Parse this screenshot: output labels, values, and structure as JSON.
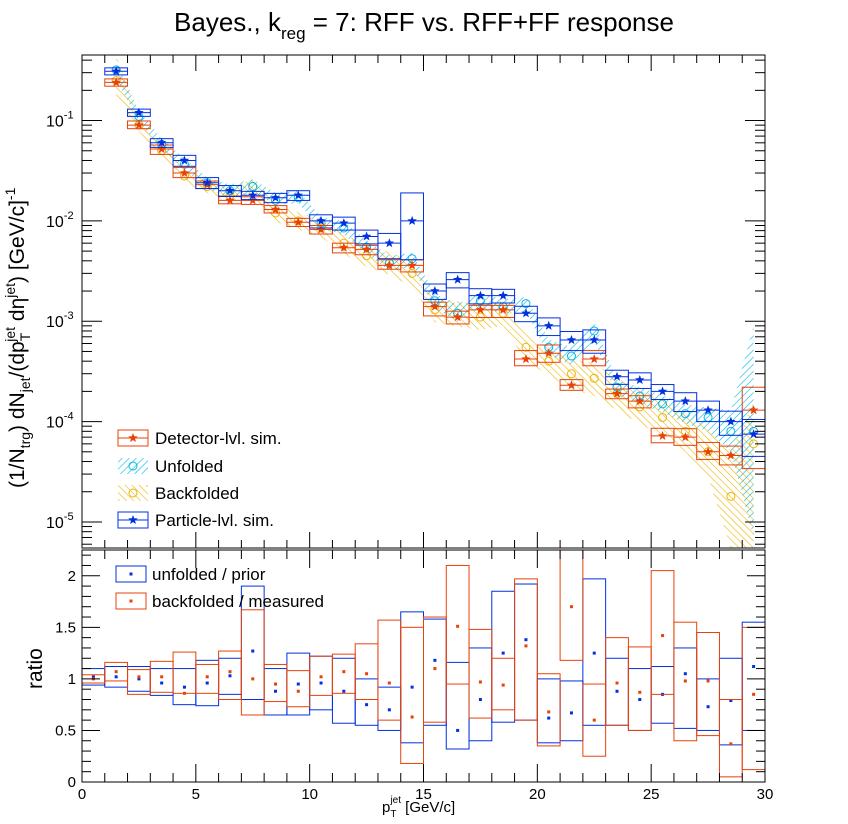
{
  "chart_data": [
    {
      "type": "scatter",
      "panel": "top",
      "title": {
        "main": "Bayes., k",
        "sub": "reg",
        "rest": " = 7: RFF vs. RFF+FF response"
      },
      "ylabel": {
        "p1": "(1/N",
        "s1": "trg",
        "p2": ") dN",
        "s2": "jet",
        "p3": "/(dp",
        "s3": "T",
        "u3": "jet",
        "p4": " d",
        "p5": "η",
        "u5": "jet",
        "p6": ") [GeV/c]",
        "u6": "-1"
      },
      "y_scale": "log",
      "xlim": [
        0,
        30
      ],
      "ylim": [
        5.5e-06,
        0.45
      ],
      "y_tick_labels": [
        {
          "b": "10",
          "e": "-5",
          "v": 1e-05
        },
        {
          "b": "10",
          "e": "-4",
          "v": 0.0001
        },
        {
          "b": "10",
          "e": "-3",
          "v": 0.001
        },
        {
          "b": "10",
          "e": "-2",
          "v": 0.01
        },
        {
          "b": "10",
          "e": "-1",
          "v": 0.1
        }
      ],
      "x": [
        1.5,
        2.5,
        3.5,
        4.5,
        5.5,
        6.5,
        7.5,
        8.5,
        9.5,
        10.5,
        11.5,
        12.5,
        13.5,
        14.5,
        15.5,
        16.5,
        17.5,
        18.5,
        19.5,
        20.5,
        21.5,
        22.5,
        23.5,
        24.5,
        25.5,
        26.5,
        27.5,
        28.5,
        29.5
      ],
      "series": [
        {
          "name": "Detector-lvl. sim.",
          "color": "#e8410a",
          "marker": "star",
          "values": [
            0.24,
            0.09,
            0.052,
            0.03,
            0.023,
            0.016,
            0.016,
            0.013,
            0.0097,
            0.0082,
            0.0054,
            0.0052,
            0.0036,
            0.0036,
            0.0014,
            0.0011,
            0.0013,
            0.0013,
            0.00042,
            0.00048,
            0.00023,
            0.00042,
            0.00019,
            0.00016,
            7.2e-05,
            7e-05,
            5e-05,
            4.6e-05,
            0.00013
          ],
          "box_low": [
            0.22,
            0.083,
            0.046,
            0.027,
            0.021,
            0.0148,
            0.0146,
            0.012,
            0.0088,
            0.0074,
            0.0048,
            0.0046,
            0.0033,
            0.0031,
            0.00113,
            0.00094,
            0.00109,
            0.00109,
            0.00036,
            0.00039,
            0.000205,
            0.00036,
            0.000169,
            0.000137,
            6.15e-05,
            5.8e-05,
            4.2e-05,
            3.7e-05,
            3.4e-05
          ],
          "box_high": [
            0.26,
            0.099,
            0.057,
            0.034,
            0.025,
            0.0177,
            0.0174,
            0.0142,
            0.0106,
            0.009,
            0.006,
            0.0057,
            0.0041,
            0.0041,
            0.00155,
            0.00126,
            0.00144,
            0.00144,
            0.00051,
            0.00058,
            0.000262,
            0.00051,
            0.000211,
            0.000181,
            8.58e-05,
            8.5e-05,
            6.2e-05,
            5.7e-05,
            0.00022
          ]
        },
        {
          "name": "Unfolded",
          "color": "#00b8e8",
          "marker": "circle-open",
          "values": [
            0.32,
            0.11,
            0.058,
            0.037,
            0.024,
            0.02,
            0.022,
            0.016,
            0.017,
            0.0095,
            0.0085,
            0.0055,
            0.0038,
            0.0042,
            0.0016,
            0.0012,
            0.0016,
            0.0014,
            0.0015,
            0.00055,
            0.00045,
            0.0008,
            0.00022,
            0.00018,
            0.00015,
            0.00012,
            0.00011,
            8e-05,
            8e-05
          ],
          "band_low": [
            0.26,
            0.096,
            0.052,
            0.033,
            0.021,
            0.017,
            0.019,
            0.0145,
            0.015,
            0.0084,
            0.0073,
            0.0047,
            0.0032,
            0.0035,
            0.00135,
            0.001,
            0.0014,
            0.00118,
            0.00125,
            0.00046,
            0.00037,
            0.00064,
            0.00018,
            0.00015,
            0.000124,
            9.6e-05,
            8e-05,
            5e-05,
            7e-06
          ],
          "band_high": [
            0.39,
            0.125,
            0.066,
            0.042,
            0.027,
            0.023,
            0.026,
            0.019,
            0.02,
            0.011,
            0.0099,
            0.0064,
            0.0045,
            0.0048,
            0.00188,
            0.00148,
            0.0019,
            0.00166,
            0.00175,
            0.00066,
            0.00055,
            0.00098,
            0.00026,
            0.00022,
            0.000182,
            0.000148,
            0.000138,
            0.00013,
            0.0009
          ]
        },
        {
          "name": "Backfolded",
          "color": "#f0b400",
          "marker": "circle-open",
          "values": [
            0.25,
            0.09,
            0.05,
            0.028,
            0.022,
            0.018,
            0.022,
            0.012,
            0.01,
            0.0085,
            0.006,
            0.0045,
            0.0038,
            0.003,
            0.0013,
            0.0012,
            0.0011,
            0.0012,
            0.00055,
            0.0004,
            0.0003,
            0.00027,
            0.00019,
            0.00014,
            0.00011,
            8e-05,
            5e-05,
            1.8e-05,
            6e-05
          ],
          "band_low": [
            0.18,
            0.078,
            0.043,
            0.024,
            0.019,
            0.015,
            0.018,
            0.0098,
            0.0082,
            0.0069,
            0.0047,
            0.0035,
            0.0029,
            0.0022,
            0.00098,
            0.00088,
            0.00082,
            0.0009,
            0.0004,
            0.00029,
            0.00021,
            0.00018,
            0.00013,
            9.5e-05,
            7.2e-05,
            5e-05,
            2.8e-05,
            5.5e-06,
            5.5e-06
          ],
          "band_high": [
            0.45,
            0.104,
            0.058,
            0.033,
            0.026,
            0.021,
            0.026,
            0.0145,
            0.0122,
            0.0104,
            0.0074,
            0.0057,
            0.0049,
            0.0039,
            0.0017,
            0.00158,
            0.00145,
            0.0016,
            0.00074,
            0.00054,
            0.00042,
            0.00038,
            0.00027,
            0.00021,
            0.000165,
            0.00012,
            8.5e-05,
            5e-05,
            0.00016
          ]
        },
        {
          "name": "Particle-lvl. sim.",
          "color": "#0030e0",
          "marker": "star",
          "values": [
            0.31,
            0.12,
            0.06,
            0.04,
            0.024,
            0.02,
            0.018,
            0.017,
            0.018,
            0.01,
            0.0095,
            0.007,
            0.006,
            0.01,
            0.002,
            0.0026,
            0.0018,
            0.0018,
            0.0012,
            0.0009,
            0.00065,
            0.00065,
            0.00028,
            0.00026,
            0.0002,
            0.00016,
            0.00013,
            0.0001,
            7.5e-05
          ],
          "box_low": [
            0.285,
            0.11,
            0.054,
            0.035,
            0.021,
            0.0175,
            0.0163,
            0.0152,
            0.016,
            0.0085,
            0.0081,
            0.0059,
            0.0042,
            0.0041,
            0.00165,
            0.00215,
            0.00149,
            0.00152,
            0.00099,
            0.00072,
            0.00051,
            0.00048,
            0.000235,
            0.000214,
            0.000166,
            0.000126,
            0.0001,
            7.3e-05,
            4.5e-05
          ],
          "box_high": [
            0.335,
            0.13,
            0.066,
            0.045,
            0.027,
            0.0225,
            0.0197,
            0.0188,
            0.02,
            0.0115,
            0.0109,
            0.0081,
            0.0075,
            0.019,
            0.00235,
            0.00305,
            0.00211,
            0.00208,
            0.00141,
            0.00108,
            0.00079,
            0.00082,
            0.000325,
            0.000306,
            0.000234,
            0.000194,
            0.00016,
            0.000127,
            0.000105
          ]
        }
      ]
    },
    {
      "type": "scatter",
      "panel": "bottom",
      "ylabel": "ratio",
      "xlabel": {
        "p": "p",
        "s": "T",
        "u": "jet",
        "rest": " [GeV/c]"
      },
      "xlim": [
        0,
        30
      ],
      "ylim": [
        0,
        2.25
      ],
      "x_tick_labels": [
        "0",
        "5",
        "10",
        "15",
        "20",
        "25",
        "30"
      ],
      "y_tick_labels": [
        "0",
        "0.5",
        "1",
        "1.5",
        "2"
      ],
      "x": [
        0.5,
        1.5,
        2.5,
        3.5,
        4.5,
        5.5,
        6.5,
        7.5,
        8.5,
        9.5,
        10.5,
        11.5,
        12.5,
        13.5,
        14.5,
        15.5,
        16.5,
        17.5,
        18.5,
        19.5,
        20.5,
        21.5,
        22.5,
        23.5,
        24.5,
        25.5,
        26.5,
        27.5,
        28.5,
        29.5
      ],
      "series": [
        {
          "name": "unfolded / prior",
          "color": "#0030e0",
          "values": [
            1.02,
            1.02,
            1.0,
            0.96,
            0.92,
            0.96,
            1.03,
            1.27,
            0.88,
            0.95,
            0.96,
            0.88,
            0.75,
            0.7,
            0.92,
            1.18,
            0.5,
            0.8,
            1.25,
            1.38,
            0.62,
            0.67,
            1.25,
            0.88,
            0.8,
            0.85,
            1.05,
            0.73,
            0.79,
            1.12
          ],
          "box_low": [
            0.94,
            0.92,
            0.88,
            0.84,
            0.75,
            0.74,
            0.85,
            0.8,
            0.65,
            0.65,
            0.7,
            0.57,
            0.55,
            0.5,
            0.38,
            0.55,
            0.32,
            0.4,
            0.58,
            0.6,
            0.38,
            0.4,
            0.55,
            0.55,
            0.5,
            0.57,
            0.52,
            0.5,
            0.36,
            0.5
          ],
          "box_high": [
            1.1,
            1.12,
            1.12,
            1.1,
            1.1,
            1.18,
            1.2,
            1.9,
            1.1,
            1.25,
            1.22,
            1.2,
            1.0,
            0.92,
            1.65,
            1.58,
            1.16,
            1.3,
            1.85,
            1.92,
            1.0,
            0.98,
            1.97,
            1.2,
            1.1,
            1.12,
            1.3,
            1.0,
            1.2,
            1.55
          ]
        },
        {
          "name": "backfolded / measured",
          "color": "#e8410a",
          "values": [
            1.0,
            1.07,
            1.02,
            1.02,
            0.86,
            1.02,
            1.07,
            1.0,
            0.95,
            0.88,
            1.02,
            1.07,
            1.05,
            0.96,
            0.63,
            1.1,
            1.51,
            0.97,
            0.94,
            1.32,
            0.68,
            1.7,
            0.6,
            0.96,
            0.87,
            1.42,
            0.98,
            0.98,
            0.37,
            0.85
          ],
          "box_low": [
            0.96,
            0.98,
            0.85,
            0.87,
            0.86,
            0.86,
            0.8,
            0.65,
            0.78,
            0.73,
            0.84,
            0.86,
            0.8,
            0.6,
            0.18,
            0.58,
            0.95,
            0.62,
            0.7,
            0.6,
            0.35,
            1.18,
            0.25,
            0.55,
            0.5,
            0.85,
            0.4,
            0.45,
            0.05,
            0.12
          ],
          "box_high": [
            1.04,
            1.16,
            1.09,
            1.17,
            1.26,
            1.14,
            1.27,
            1.67,
            1.14,
            1.08,
            1.22,
            1.24,
            1.34,
            1.57,
            1.5,
            1.6,
            2.1,
            1.48,
            1.2,
            1.97,
            1.05,
            2.25,
            0.95,
            1.4,
            1.31,
            2.05,
            1.55,
            1.45,
            0.8,
            1.5
          ]
        }
      ]
    }
  ]
}
